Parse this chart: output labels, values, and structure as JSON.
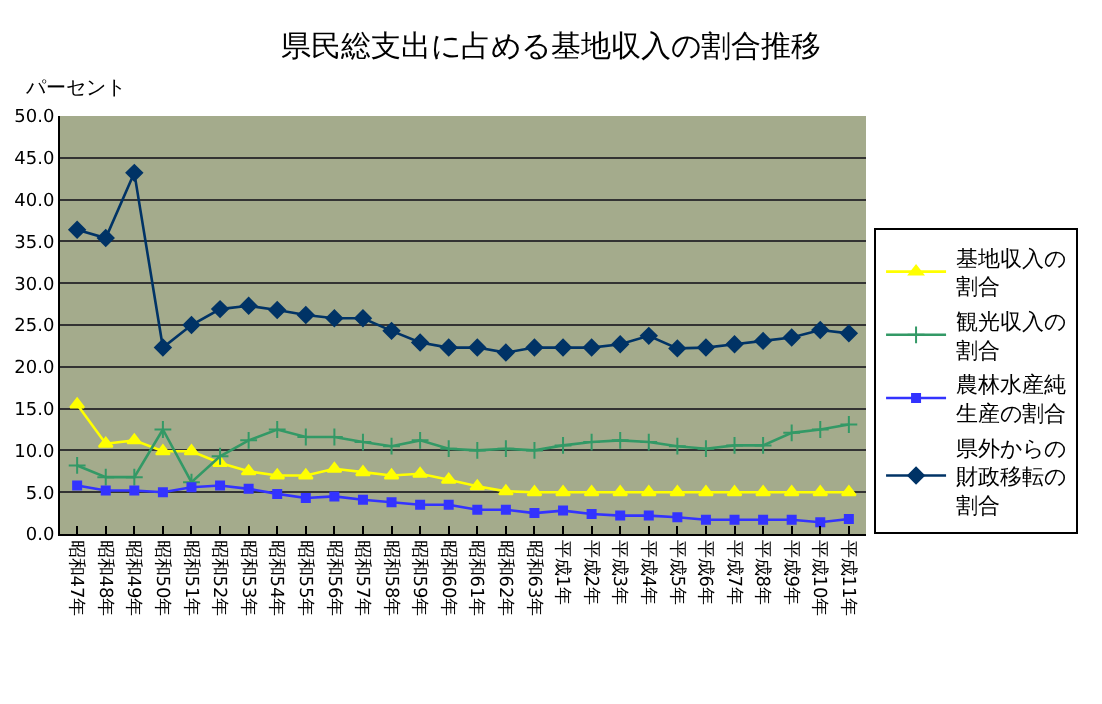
{
  "chart_data": {
    "type": "line",
    "title": "県民総支出に占める基地収入の割合推移",
    "ylabel": "パーセント",
    "categories": [
      "昭和47年",
      "昭和48年",
      "昭和49年",
      "昭和50年",
      "昭和51年",
      "昭和52年",
      "昭和53年",
      "昭和54年",
      "昭和55年",
      "昭和56年",
      "昭和57年",
      "昭和58年",
      "昭和59年",
      "昭和60年",
      "昭和61年",
      "昭和62年",
      "昭和63年",
      "平成1年",
      "平成2年",
      "平成3年",
      "平成4年",
      "平成5年",
      "平成6年",
      "平成7年",
      "平成8年",
      "平成9年",
      "平成10年",
      "平成11年"
    ],
    "series": [
      {
        "name": "基地収入の割合",
        "color": "#ffff00",
        "marker": "triangle",
        "values": [
          15.5,
          10.8,
          11.2,
          9.9,
          9.9,
          8.5,
          7.5,
          7.0,
          7.0,
          7.8,
          7.4,
          7.0,
          7.2,
          6.5,
          5.7,
          5.1,
          5.0,
          5.0,
          5.0,
          5.0,
          5.0,
          5.0,
          5.0,
          5.0,
          5.0,
          5.0,
          5.0,
          5.0
        ]
      },
      {
        "name": "観光収入の割合",
        "color": "#339966",
        "marker": "cross",
        "values": [
          8.2,
          6.8,
          6.8,
          12.5,
          6.2,
          9.3,
          11.2,
          12.5,
          11.6,
          11.6,
          11.0,
          10.5,
          11.2,
          10.2,
          10.0,
          10.2,
          10.0,
          10.6,
          11.0,
          11.2,
          11.0,
          10.5,
          10.2,
          10.6,
          10.6,
          12.1,
          12.5,
          13.1
        ]
      },
      {
        "name": "農林水産純生産の割合",
        "color": "#3333ff",
        "marker": "square",
        "values": [
          5.8,
          5.2,
          5.2,
          5.0,
          5.6,
          5.8,
          5.4,
          4.8,
          4.3,
          4.5,
          4.1,
          3.8,
          3.5,
          3.5,
          2.9,
          2.9,
          2.5,
          2.8,
          2.4,
          2.2,
          2.2,
          2.0,
          1.7,
          1.7,
          1.7,
          1.7,
          1.4,
          1.8
        ]
      },
      {
        "name": "県外からの財政移転の割合",
        "color": "#003366",
        "marker": "diamond",
        "values": [
          36.4,
          35.4,
          43.2,
          22.3,
          25.0,
          26.9,
          27.3,
          26.8,
          26.2,
          25.8,
          25.8,
          24.3,
          22.9,
          22.3,
          22.3,
          21.7,
          22.3,
          22.3,
          22.3,
          22.7,
          23.7,
          22.2,
          22.3,
          22.7,
          23.1,
          23.5,
          24.4,
          24.0
        ]
      }
    ],
    "ylim": [
      0,
      50
    ],
    "yticks": [
      {
        "value": 0,
        "label": "0.0"
      },
      {
        "value": 5,
        "label": "5.0"
      },
      {
        "value": 10,
        "label": "10.0"
      },
      {
        "value": 15,
        "label": "15.0"
      },
      {
        "value": 20,
        "label": "20.0"
      },
      {
        "value": 25,
        "label": "25.0"
      },
      {
        "value": 30,
        "label": "30.0"
      },
      {
        "value": 35,
        "label": "35.0"
      },
      {
        "value": 40,
        "label": "40.0"
      },
      {
        "value": 45,
        "label": "45.0"
      },
      {
        "value": 50,
        "label": "50.0"
      }
    ],
    "grid": "y",
    "legend": "right",
    "line_style": "solid"
  }
}
